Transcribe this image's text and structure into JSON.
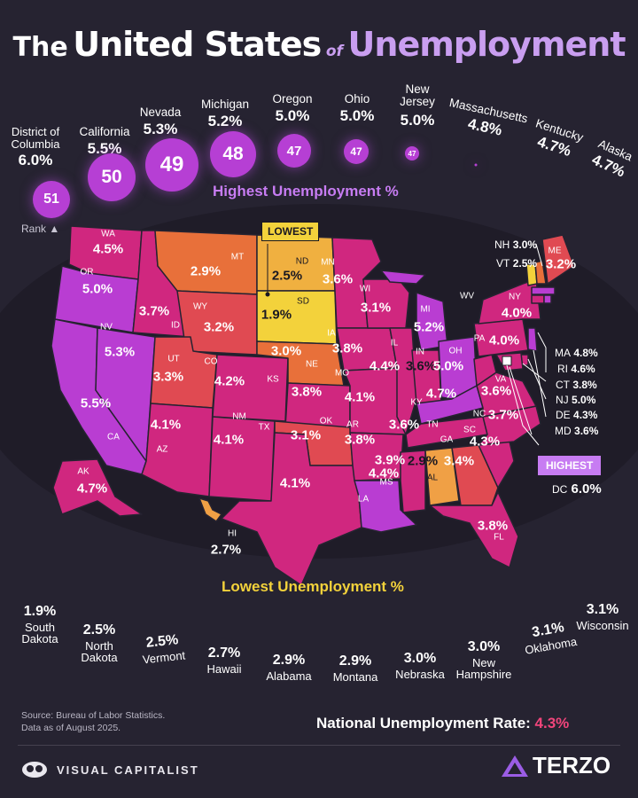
{
  "title": {
    "w1": "The",
    "w2": "United States",
    "w3": "of",
    "w4": "Unemployment"
  },
  "highest_title": "Highest Unemployment %",
  "rank_label": "Rank",
  "highest": [
    {
      "state": "District of Columbia",
      "value": "6.0%",
      "rank": "51"
    },
    {
      "state": "California",
      "value": "5.5%",
      "rank": "50"
    },
    {
      "state": "Nevada",
      "value": "5.3%",
      "rank": "49"
    },
    {
      "state": "Michigan",
      "value": "5.2%",
      "rank": "48"
    },
    {
      "state": "Oregon",
      "value": "5.0%",
      "rank": "47"
    },
    {
      "state": "Ohio",
      "value": "5.0%",
      "rank": "47"
    },
    {
      "state": "New Jersey",
      "value": "5.0%",
      "rank": "47"
    },
    {
      "state": "Massachusetts",
      "value": "4.8%"
    },
    {
      "state": "Kentucky",
      "value": "4.7%"
    },
    {
      "state": "Alaska",
      "value": "4.7%"
    }
  ],
  "lowest_title": "Lowest Unemployment %",
  "lowest": [
    {
      "state": "South Dakota",
      "value": "1.9%"
    },
    {
      "state": "North Dakota",
      "value": "2.5%"
    },
    {
      "state": "Vermont",
      "value": "2.5%"
    },
    {
      "state": "Hawaii",
      "value": "2.7%"
    },
    {
      "state": "Alabama",
      "value": "2.9%"
    },
    {
      "state": "Montana",
      "value": "2.9%"
    },
    {
      "state": "Nebraska",
      "value": "3.0%"
    },
    {
      "state": "New Hampshire",
      "value": "3.0%"
    },
    {
      "state": "Oklahoma",
      "value": "3.1%"
    },
    {
      "state": "Wisconsin",
      "value": "3.1%"
    }
  ],
  "map_states": {
    "WA": "4.5%",
    "OR": "5.0%",
    "CA": "5.5%",
    "NV": "5.3%",
    "ID": "3.7%",
    "MT": "2.9%",
    "WY": "3.2%",
    "UT": "3.3%",
    "CO": "4.2%",
    "AZ": "4.1%",
    "NM": "4.1%",
    "ND": "2.5%",
    "SD": "1.9%",
    "NE": "3.0%",
    "KS": "3.8%",
    "OK": "3.1%",
    "TX": "4.1%",
    "MN": "3.6%",
    "IA": "3.8%",
    "MO": "4.1%",
    "AR": "3.8%",
    "LA": "4.4%",
    "WI": "3.1%",
    "IL": "4.4%",
    "MI": "5.2%",
    "IN": "3.6%",
    "OH": "5.0%",
    "KY": "4.7%",
    "TN": "3.6%",
    "MS": "3.9%",
    "AL": "2.9%",
    "GA": "3.4%",
    "FL": "3.8%",
    "SC": "4.3%",
    "NC": "3.7%",
    "VA": "3.6%",
    "WV": "",
    "PA": "4.0%",
    "NY": "4.0%",
    "ME": "3.2%",
    "AK": "4.7%",
    "HI": "2.7%"
  },
  "callouts": {
    "lowest_tag": "LOWEST",
    "highest_tag": "HIGHEST",
    "dc": "DC",
    "dc_value": "6.0%",
    "nh": "NH",
    "nh_value": "3.0%",
    "vt": "VT",
    "vt_value": "2.5%",
    "ne_list": [
      {
        "st": "MA",
        "v": "4.8%"
      },
      {
        "st": "RI",
        "v": "4.6%"
      },
      {
        "st": "CT",
        "v": "3.8%"
      },
      {
        "st": "NJ",
        "v": "5.0%"
      },
      {
        "st": "DE",
        "v": "4.3%"
      },
      {
        "st": "MD",
        "v": "3.6%"
      }
    ]
  },
  "footer": {
    "source_line1": "Source: Bureau of Labor Statistics.",
    "source_line2": "Data as of August 2025.",
    "national_label": "National Unemployment Rate:",
    "national_value": "4.3%",
    "brand_left": "VISUAL CAPITALIST",
    "brand_right": "TERZO"
  },
  "colors": {
    "bg": "#262331",
    "highest_accent": "#c77cf2",
    "lowest_accent": "#f3d23b",
    "scale_low": "#f3d23b",
    "scale_mid": "#e8573f",
    "scale_high": "#c23ad8"
  }
}
